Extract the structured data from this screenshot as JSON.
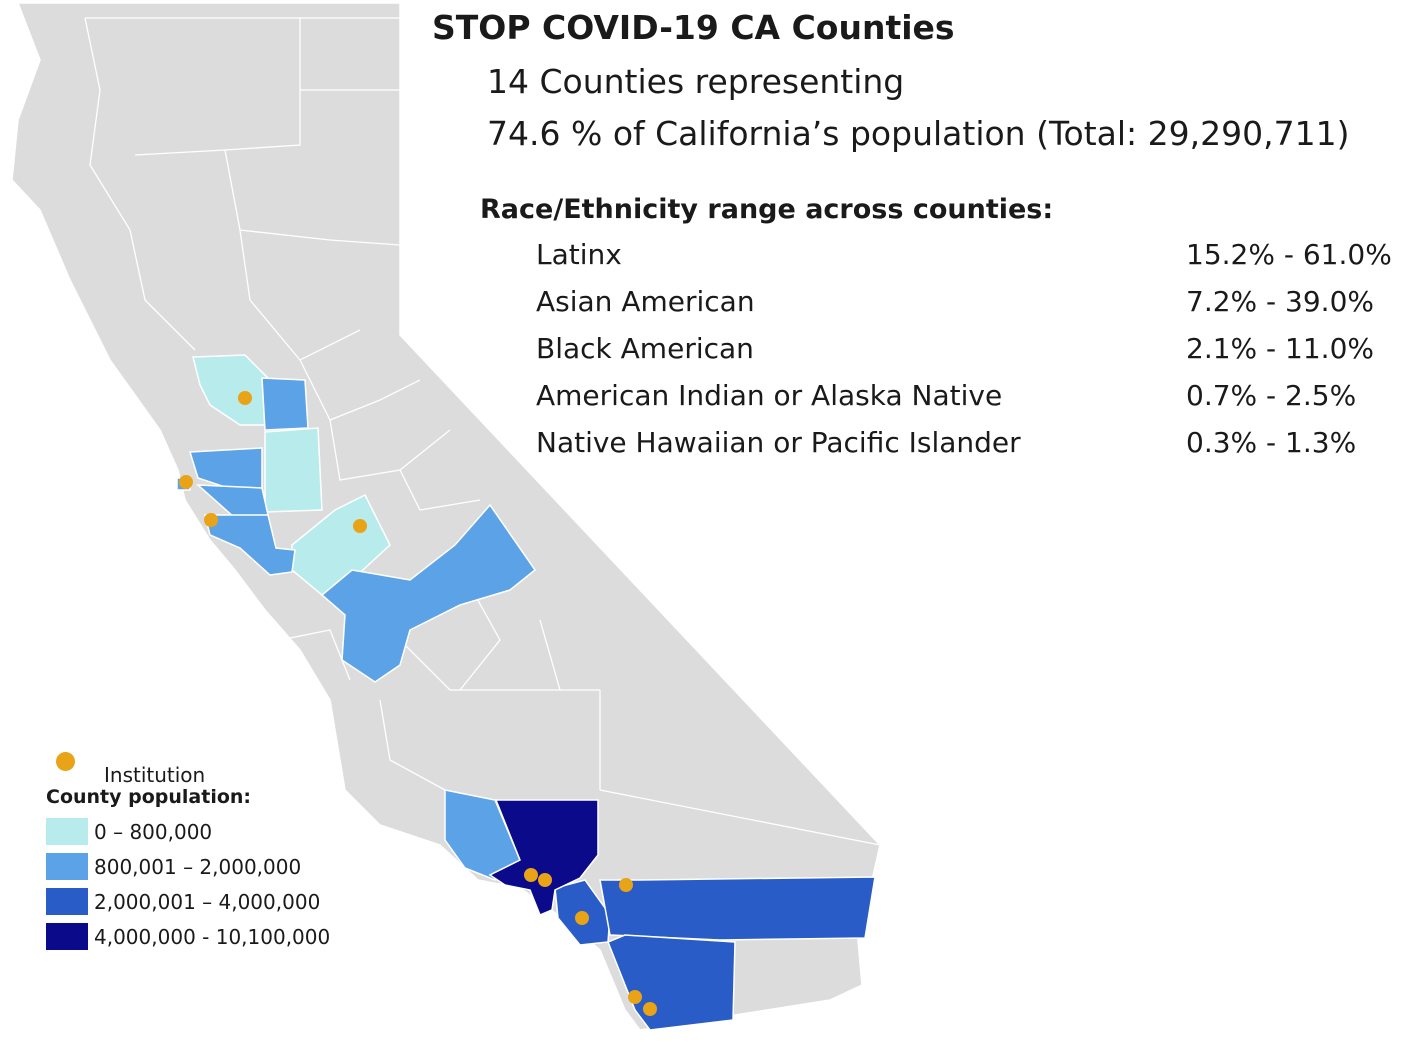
{
  "header": {
    "title": "STOP COVID-19 CA Counties",
    "line1": "14 Counties representing",
    "line2": "74.6 % of California’s population (Total: 29,290,711)"
  },
  "race_ethnicity": {
    "title": "Race/Ethnicity range across counties:",
    "rows": [
      {
        "group": "Latinx",
        "range": "15.2% - 61.0%"
      },
      {
        "group": "Asian American",
        "range": "7.2% - 39.0%"
      },
      {
        "group": "Black American",
        "range": "2.1% - 11.0%"
      },
      {
        "group": "American Indian or Alaska Native",
        "range": "0.7% - 2.5%"
      },
      {
        "group": "Native Hawaiian or Pacific Islander",
        "range": "0.3% - 1.3%"
      }
    ]
  },
  "legend": {
    "institution_label": "Institution",
    "institution_color": "#e8a317",
    "population_title": "County population:",
    "bins": [
      {
        "label": "0 – 800,000",
        "color": "#b8ecec"
      },
      {
        "label": "800,001 – 2,000,000",
        "color": "#5ba3e6"
      },
      {
        "label": "2,000,001 – 4,000,000",
        "color": "#2a5cc8"
      },
      {
        "label": "4,000,000 - 10,100,000",
        "color": "#0a0a8a"
      }
    ]
  },
  "map_colors": {
    "state_fill": "#dcdcdc",
    "county_border": "#ffffff"
  }
}
